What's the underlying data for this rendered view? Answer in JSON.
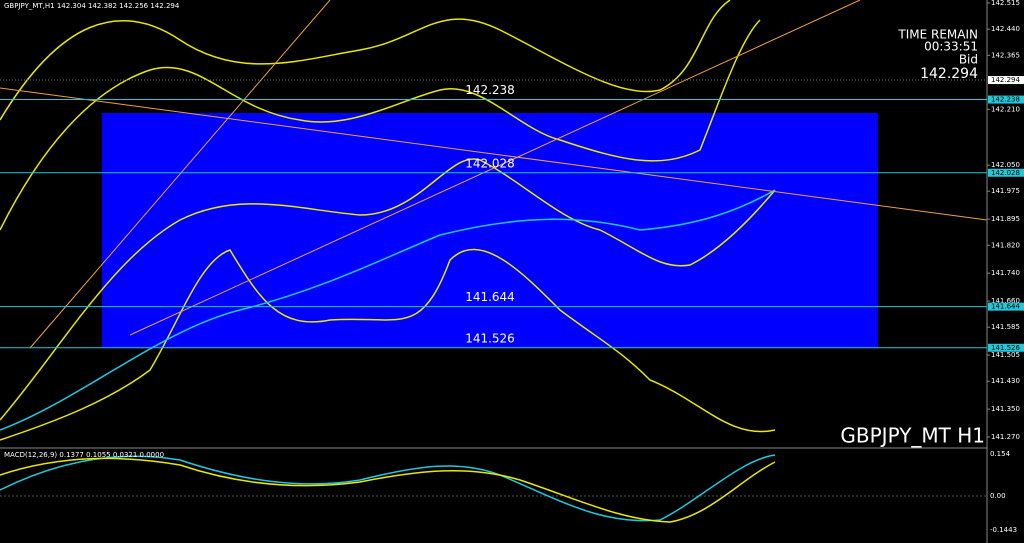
{
  "header": {
    "title": "GBPJPY_MT,H1 142.304 142.382 142.256 142.294"
  },
  "timer": {
    "label": "TIME REMAIN",
    "value": "00:33:51",
    "bid_label": "Bid",
    "bid": "142.294"
  },
  "symbol_label": "GBPJPY_MT H1",
  "price_axis": {
    "ticks": [
      {
        "value": 142.515,
        "label": "142.515"
      },
      {
        "value": 142.44,
        "label": "142.440"
      },
      {
        "value": 142.365,
        "label": "142.365"
      },
      {
        "value": 142.21,
        "label": "142.210"
      },
      {
        "value": 142.05,
        "label": "142.050"
      },
      {
        "value": 141.975,
        "label": "141.975"
      },
      {
        "value": 141.895,
        "label": "141.895"
      },
      {
        "value": 141.82,
        "label": "141.820"
      },
      {
        "value": 141.74,
        "label": "141.740"
      },
      {
        "value": 141.66,
        "label": "141.660"
      },
      {
        "value": 141.585,
        "label": "141.585"
      },
      {
        "value": 141.505,
        "label": "141.505"
      },
      {
        "value": 141.43,
        "label": "141.430"
      },
      {
        "value": 141.35,
        "label": "141.350"
      },
      {
        "value": 141.27,
        "label": "141.270"
      }
    ],
    "bid": {
      "value": 142.294,
      "label": "142.294"
    }
  },
  "levels": [
    {
      "value": 142.238,
      "label": "142.238"
    },
    {
      "value": 142.028,
      "label": "142.028"
    },
    {
      "value": 141.644,
      "label": "141.644"
    },
    {
      "value": 141.526,
      "label": "141.526"
    }
  ],
  "macd": {
    "title": "MACD(12,26,9) 0.1377 0.1055 0.0321 0.0000",
    "axis": [
      "0.154",
      "0.00",
      "-0.1443"
    ]
  }
}
